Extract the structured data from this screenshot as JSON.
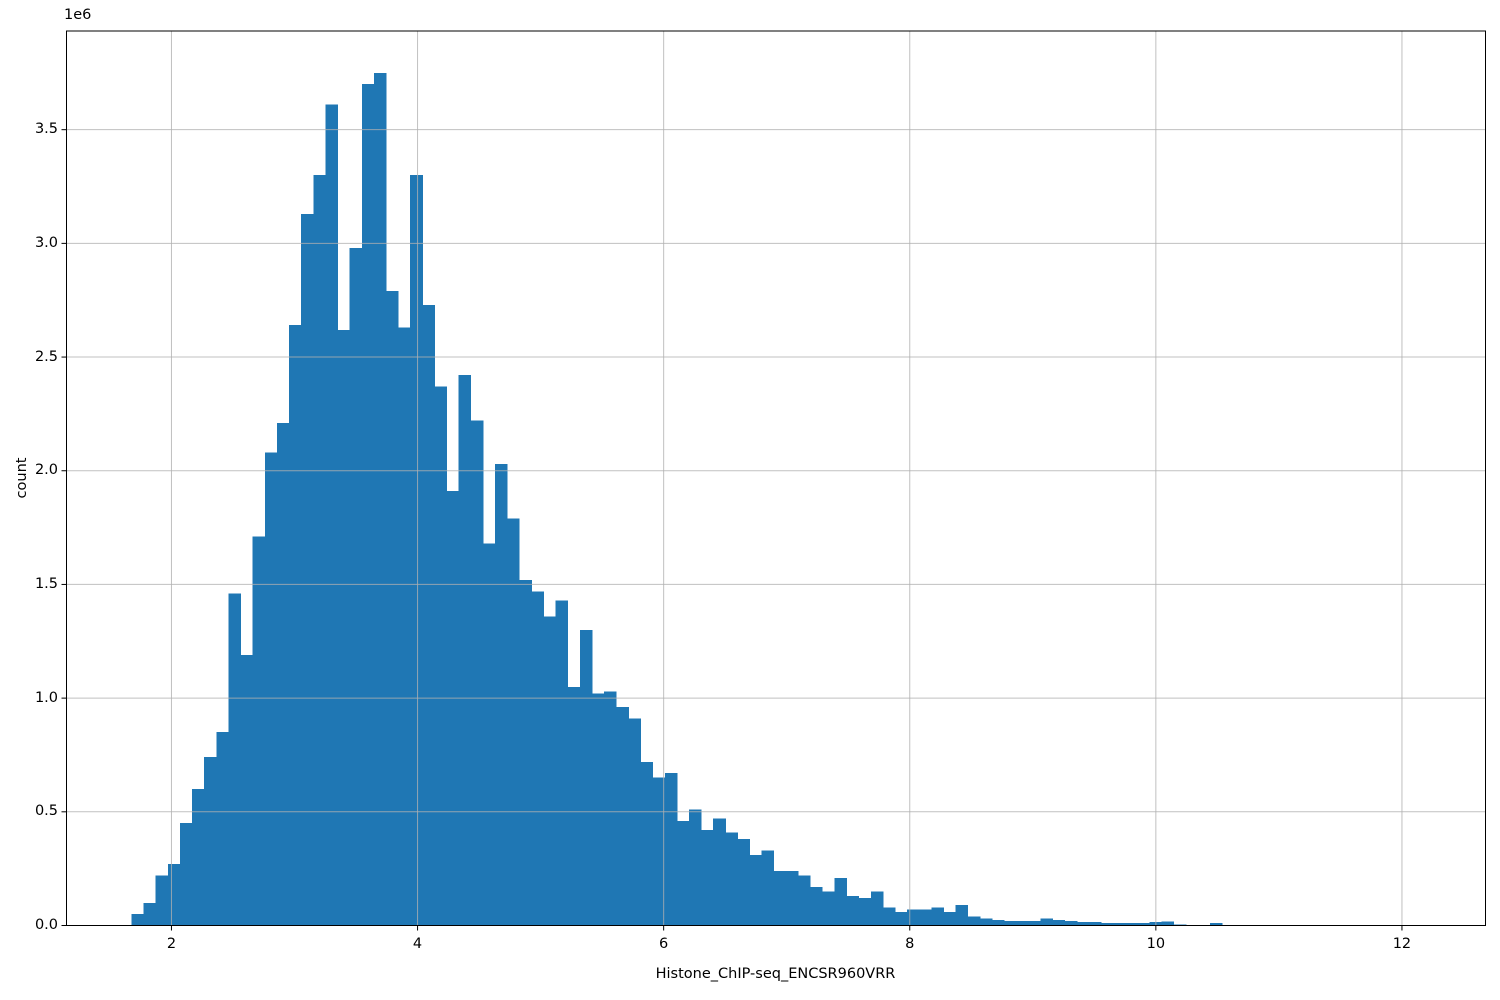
{
  "figure": {
    "offset_text": "1e6",
    "x_axis_label": "Histone_ChIP-seq_ENCSR960VRR",
    "y_axis_label": "count",
    "x_tick_labels": [
      "2",
      "4",
      "6",
      "8",
      "10",
      "12"
    ],
    "y_tick_labels": [
      "0.0",
      "0.5",
      "1.0",
      "1.5",
      "2.0",
      "2.5",
      "3.0",
      "3.5"
    ]
  },
  "chart_data": {
    "type": "bar",
    "subtype": "histogram",
    "title": "",
    "xlabel": "Histone_ChIP-seq_ENCSR960VRR",
    "ylabel": "count",
    "y_unit_multiplier": "1e6",
    "legend": "none",
    "grid": "on",
    "grid_above_bars": true,
    "bin_start": 1.675,
    "bin_width": 0.0985,
    "counts_millions": [
      0.05,
      0.1,
      0.22,
      0.27,
      0.45,
      0.6,
      0.74,
      0.85,
      1.46,
      1.19,
      1.71,
      2.08,
      2.21,
      2.64,
      3.13,
      3.3,
      3.61,
      2.62,
      2.98,
      3.7,
      3.75,
      2.79,
      2.63,
      3.3,
      2.73,
      2.37,
      1.91,
      2.42,
      2.22,
      1.68,
      2.03,
      1.79,
      1.52,
      1.47,
      1.36,
      1.43,
      1.05,
      1.3,
      1.02,
      1.03,
      0.96,
      0.91,
      0.72,
      0.65,
      0.67,
      0.46,
      0.51,
      0.42,
      0.47,
      0.41,
      0.38,
      0.31,
      0.33,
      0.24,
      0.24,
      0.22,
      0.17,
      0.15,
      0.21,
      0.13,
      0.12,
      0.15,
      0.08,
      0.06,
      0.07,
      0.07,
      0.08,
      0.06,
      0.09,
      0.04,
      0.03,
      0.025,
      0.02,
      0.02,
      0.02,
      0.03,
      0.025,
      0.02,
      0.015,
      0.015,
      0.012,
      0.01,
      0.01,
      0.01,
      0.015,
      0.018,
      0.004,
      0.002,
      0.002,
      0.01,
      0.001
    ],
    "x_tick_values": [
      2,
      4,
      6,
      8,
      10,
      12
    ],
    "y_tick_values_millions": [
      0,
      0.5,
      1.0,
      1.5,
      2.0,
      2.5,
      3.0,
      3.5
    ],
    "xlim": [
      1.147,
      12.679
    ],
    "ylim_millions": [
      0,
      3.934
    ],
    "colors": {
      "bar": "#1f77b4",
      "grid": "#b0b0b0",
      "spine": "#000000",
      "text": "#000000"
    }
  }
}
